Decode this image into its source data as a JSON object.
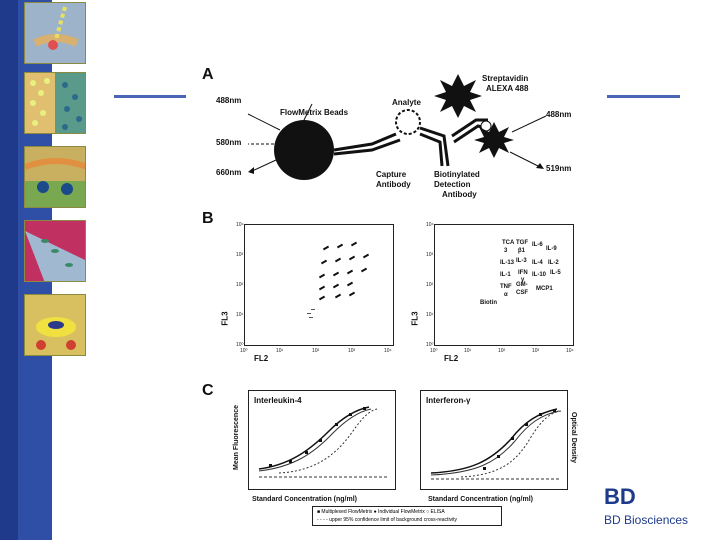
{
  "panel_a": {
    "letter": "A",
    "beads_label": "FlowMetrix Beads",
    "analyte_label": "Analyte",
    "capture_label_1": "Capture",
    "capture_label_2": "Antibody",
    "detect_label_1": "Biotinylated",
    "detect_label_2": "Detection",
    "detect_label_3": "Antibody",
    "strep_label_1": "Streptavidin",
    "strep_label_2": "ALEXA 488",
    "wl_488_left": "488nm",
    "wl_580": "580nm",
    "wl_660": "660nm",
    "wl_488_right": "488nm",
    "wl_519": "519nm"
  },
  "panel_b": {
    "letter": "B",
    "y_label": "FL3",
    "x_label": "FL2",
    "ticks": [
      "10⁰",
      "10¹",
      "10²",
      "10³",
      "10⁴"
    ],
    "cytokine_rows": [
      [
        "TCA",
        "TGF",
        "IL-6",
        "IL-9"
      ],
      [
        "3",
        "β1",
        "",
        ""
      ],
      [
        "IL-13",
        "IL-3",
        "IL-4",
        "IL-2"
      ],
      [
        "IL-1",
        "IFN",
        "IL-10",
        "IL-5"
      ],
      [
        "",
        "γ",
        "",
        ""
      ],
      [
        "TNF",
        "GM-",
        "MCP1",
        ""
      ],
      [
        "α",
        "CSF",
        "",
        ""
      ]
    ],
    "biotin_label": "Biotin"
  },
  "panel_c": {
    "letter": "C",
    "left_title": "Interleukin-4",
    "right_title": "Interferon-γ",
    "y_left_label": "Mean Fluorescence",
    "y_right_label": "Optical Density",
    "x_label": "Standard Concentration (ng/ml)",
    "legend_1": "■ Multiplexed FlowMetrix  ● Individual FlowMetrix  ○ ELISA",
    "legend_2": "- - - - upper 95% confidence limit of background cross-reactivity"
  },
  "brand": {
    "logo": "BD",
    "name": "BD Biosciences",
    "color": "#1e3a8a"
  }
}
